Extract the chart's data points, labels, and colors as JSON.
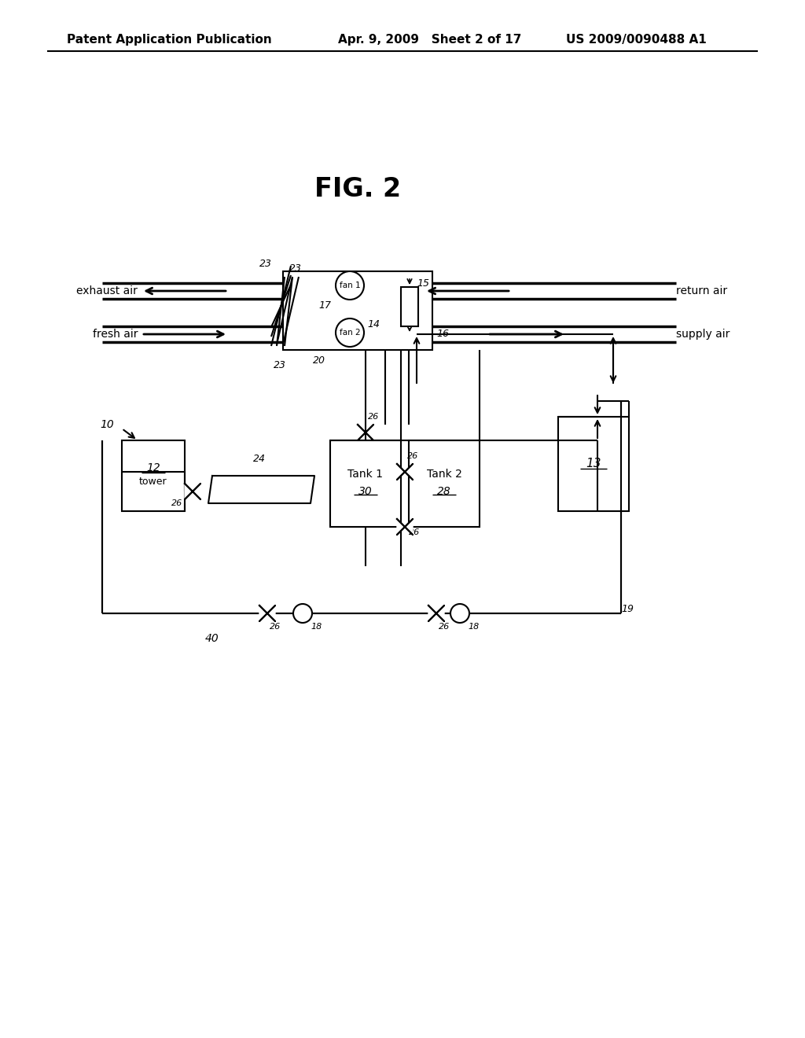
{
  "title": "FIG. 2",
  "patent_header_left": "Patent Application Publication",
  "patent_header_mid": "Apr. 9, 2009   Sheet 2 of 17",
  "patent_header_right": "US 2009/0090488 A1",
  "bg_color": "#ffffff",
  "line_color": "#000000",
  "fig_label_fontsize": 22,
  "header_fontsize": 11
}
